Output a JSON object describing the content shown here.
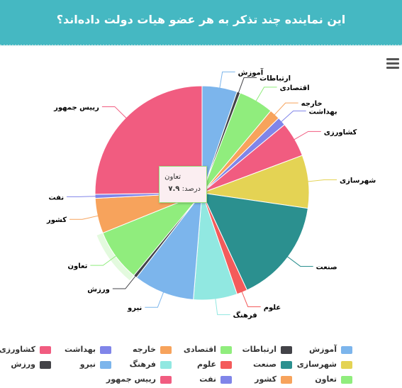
{
  "header": {
    "title": "این نماینده چند تذکر به هر عضو هیات دولت داده‌اند؟"
  },
  "menu": {
    "icon": "hamburger-menu-icon"
  },
  "tooltip": {
    "name": "تعاون",
    "label": "درصد:",
    "value": "۷.۹"
  },
  "chart_data": {
    "type": "pie",
    "title": "این نماینده چند تذکر به هر عضو هیات دولت داده‌اند؟",
    "unit": "درصد",
    "highlighted": "تعاون",
    "legend_position": "bottom",
    "slices": [
      {
        "label": "آموزش",
        "value": 5.3,
        "color": "#7cb5ec"
      },
      {
        "label": "ارتباطات",
        "value": 0.5,
        "color": "#434348"
      },
      {
        "label": "اقتصادی",
        "value": 5.3,
        "color": "#90ed7d"
      },
      {
        "label": "خارجه",
        "value": 1.6,
        "color": "#f7a35c"
      },
      {
        "label": "بهداشت",
        "value": 1.3,
        "color": "#8085e9"
      },
      {
        "label": "کشاورزی",
        "value": 5.3,
        "color": "#f15c80"
      },
      {
        "label": "شهرسازی",
        "value": 8.0,
        "color": "#e4d354"
      },
      {
        "label": "صنعت",
        "value": 15.8,
        "color": "#2b908f"
      },
      {
        "label": "علوم",
        "value": 1.6,
        "color": "#f45b5b"
      },
      {
        "label": "فرهنگ",
        "value": 6.6,
        "color": "#91e8e1"
      },
      {
        "label": "نیرو",
        "value": 9.2,
        "color": "#7cb5ec"
      },
      {
        "label": "ورزش",
        "value": 0.5,
        "color": "#434348"
      },
      {
        "label": "تعاون",
        "value": 7.9,
        "color": "#90ed7d"
      },
      {
        "label": "کشور",
        "value": 5.3,
        "color": "#f7a35c"
      },
      {
        "label": "نفت",
        "value": 0.6,
        "color": "#8085e9"
      },
      {
        "label": "رییس جمهور",
        "value": 25.2,
        "color": "#f15c80"
      }
    ]
  }
}
